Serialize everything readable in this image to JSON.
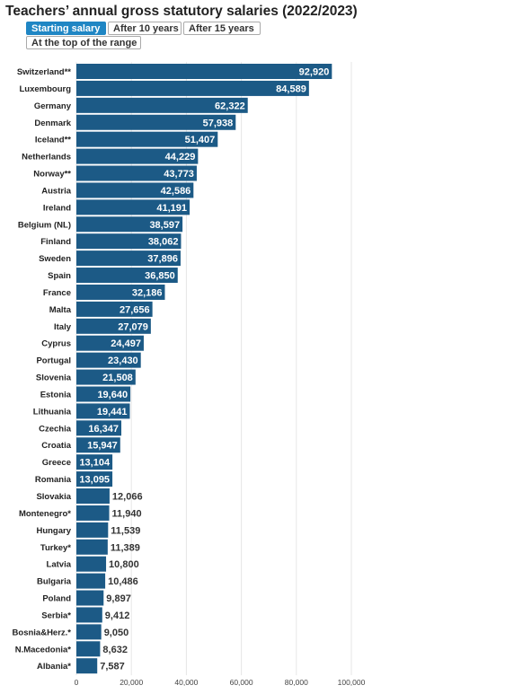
{
  "title": "Teachers’ annual gross statutory salaries (2022/2023)",
  "tabs": [
    {
      "label": "Starting salary",
      "active": true
    },
    {
      "label": "After 10 years",
      "active": false
    },
    {
      "label": "After 15 years",
      "active": false
    },
    {
      "label": "At the top of the range",
      "active": false
    }
  ],
  "colors": {
    "bar": "#1c5a86",
    "active_tab": "#1f86c4"
  },
  "chart_data": {
    "type": "bar",
    "orientation": "horizontal",
    "title": "Teachers’ annual gross statutory salaries (2022/2023)",
    "xlim": [
      0,
      100000
    ],
    "x_ticks": [
      "0",
      "20,000",
      "40,000",
      "60,000",
      "80,000",
      "100,000"
    ],
    "grid": true,
    "categories": [
      "Switzerland**",
      "Luxembourg",
      "Germany",
      "Denmark",
      "Iceland**",
      "Netherlands",
      "Norway**",
      "Austria",
      "Ireland",
      "Belgium (NL)",
      "Finland",
      "Sweden",
      "Spain",
      "France",
      "Malta",
      "Italy",
      "Cyprus",
      "Portugal",
      "Slovenia",
      "Estonia",
      "Lithuania",
      "Czechia",
      "Croatia",
      "Greece",
      "Romania",
      "Slovakia",
      "Montenegro*",
      "Hungary",
      "Turkey*",
      "Latvia",
      "Bulgaria",
      "Poland",
      "Serbia*",
      "Bosnia&Herz.*",
      "N.Macedonia*",
      "Albania*"
    ],
    "values": [
      92920,
      84589,
      62322,
      57938,
      51407,
      44229,
      43773,
      42586,
      41191,
      38597,
      38062,
      37896,
      36850,
      32186,
      27656,
      27079,
      24497,
      23430,
      21508,
      19640,
      19441,
      16347,
      15947,
      13104,
      13095,
      12066,
      11940,
      11539,
      11389,
      10800,
      10486,
      9897,
      9412,
      9050,
      8632,
      7587
    ],
    "value_labels": [
      "92,920",
      "84,589",
      "62,322",
      "57,938",
      "51,407",
      "44,229",
      "43,773",
      "42,586",
      "41,191",
      "38,597",
      "38,062",
      "37,896",
      "36,850",
      "32,186",
      "27,656",
      "27,079",
      "24,497",
      "23,430",
      "21,508",
      "19,640",
      "19,441",
      "16,347",
      "15,947",
      "13,104",
      "13,095",
      "12,066",
      "11,940",
      "11,539",
      "11,389",
      "10,800",
      "10,486",
      "9,897",
      "9,412",
      "9,050",
      "8,632",
      "7,587"
    ],
    "labels_inside_count": 25
  }
}
